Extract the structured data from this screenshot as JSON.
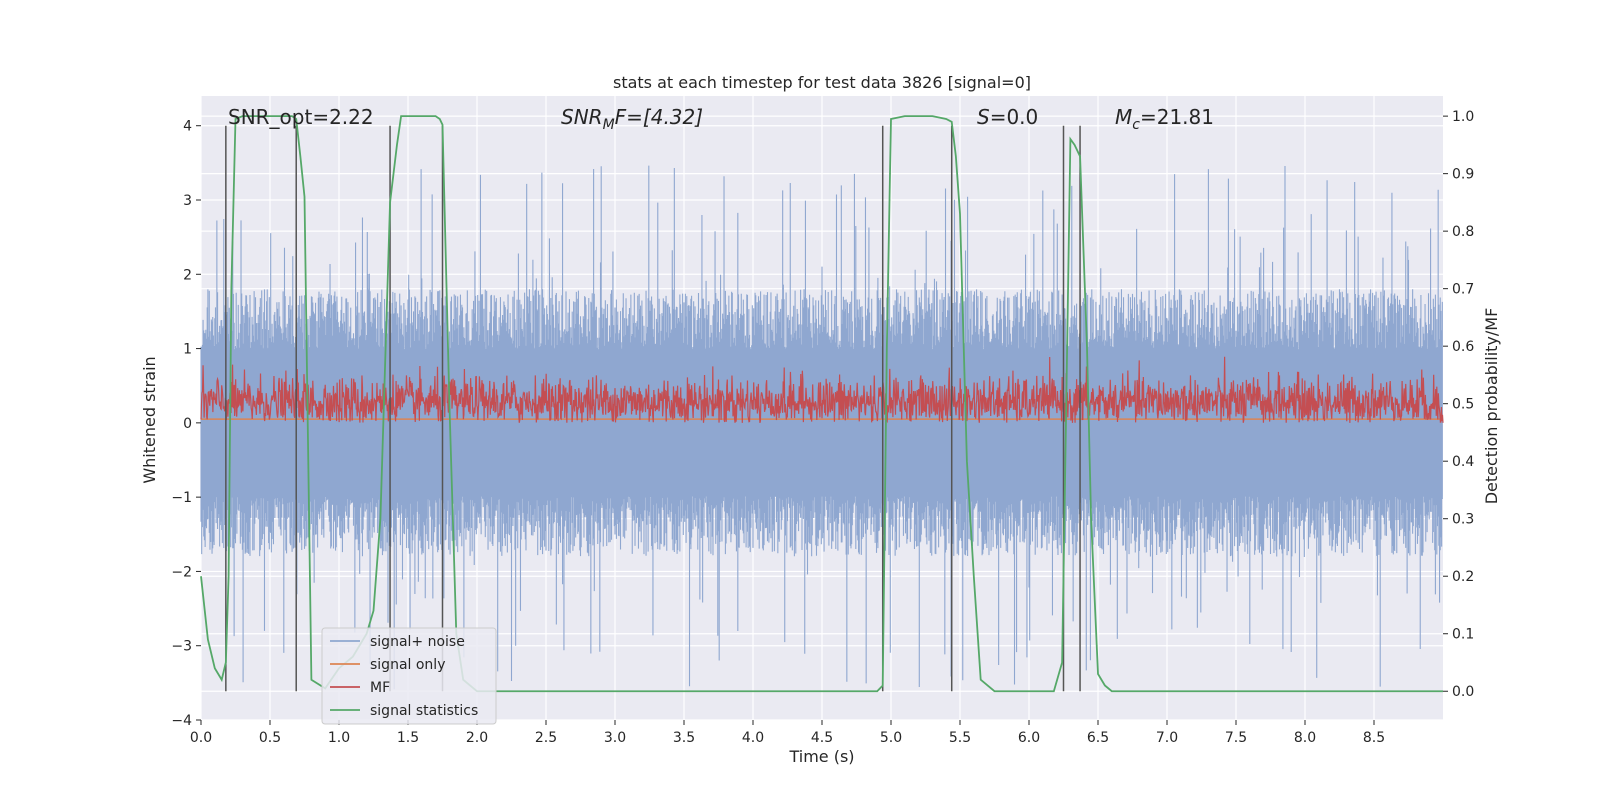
{
  "chart_data": {
    "type": "line",
    "title": "stats at each timestep for test data 3826 [signal=0]",
    "xlabel": "Time (s)",
    "ylabel_left": "Whitened strain",
    "ylabel_right": "Detection probability/MF",
    "xlim": [
      0.0,
      9.0
    ],
    "ylim_left": [
      -4.0,
      4.4
    ],
    "ylim_right": [
      -0.05,
      1.035
    ],
    "x_ticks": [
      "0.0",
      "0.5",
      "1.0",
      "1.5",
      "2.0",
      "2.5",
      "3.0",
      "3.5",
      "4.0",
      "4.5",
      "5.0",
      "5.5",
      "6.0",
      "6.5",
      "7.0",
      "7.5",
      "8.0",
      "8.5"
    ],
    "y_ticks_left": [
      "−4",
      "−3",
      "−2",
      "−1",
      "0",
      "1",
      "2",
      "3",
      "4"
    ],
    "y_ticks_right": [
      "0.0",
      "0.1",
      "0.2",
      "0.3",
      "0.4",
      "0.5",
      "0.6",
      "0.7",
      "0.8",
      "0.9",
      "1.0"
    ],
    "grid": true,
    "annotations": {
      "snr_opt": "SNR_opt=2.22",
      "snr_mf_base": "SNR",
      "snr_mf_sub": "M",
      "snr_mf_tail": "F=[4.32]",
      "s_label": "S",
      "s_value": "=0.0",
      "mc_label": "M",
      "mc_sub": "c",
      "mc_value": "=21.81"
    },
    "vertical_markers_x": [
      0.18,
      0.69,
      1.37,
      1.75,
      4.94,
      5.44,
      6.25,
      6.37
    ],
    "series": [
      {
        "name": "signal+ noise",
        "color": "#8fa7d0",
        "kind": "noise",
        "envelope_typical": [
          -1.8,
          1.8
        ],
        "peak_range": [
          -3.6,
          3.5
        ]
      },
      {
        "name": "signal only",
        "color": "#dd8452",
        "kind": "flat",
        "value": 0.05
      },
      {
        "name": "MF",
        "color": "#c44e52",
        "kind": "mf",
        "range": [
          0.0,
          0.95
        ]
      },
      {
        "name": "signal statistics",
        "color": "#55a868",
        "axis": "right",
        "x": [
          0.0,
          0.05,
          0.1,
          0.15,
          0.18,
          0.2,
          0.22,
          0.25,
          0.3,
          0.4,
          0.5,
          0.6,
          0.66,
          0.69,
          0.72,
          0.75,
          0.8,
          0.9,
          1.0,
          1.1,
          1.2,
          1.25,
          1.3,
          1.37,
          1.42,
          1.45,
          1.5,
          1.6,
          1.7,
          1.73,
          1.75,
          1.8,
          1.85,
          1.9,
          2.0,
          2.5,
          3.0,
          3.5,
          4.0,
          4.5,
          4.9,
          4.94,
          4.97,
          5.0,
          5.1,
          5.3,
          5.4,
          5.44,
          5.47,
          5.5,
          5.55,
          5.6,
          5.65,
          5.75,
          6.0,
          6.18,
          6.24,
          6.27,
          6.3,
          6.33,
          6.37,
          6.42,
          6.45,
          6.5,
          6.55,
          6.6,
          6.7,
          7.0,
          8.0,
          9.0
        ],
        "y": [
          0.2,
          0.09,
          0.04,
          0.02,
          0.05,
          0.2,
          0.7,
          0.995,
          1.0,
          1.0,
          1.0,
          1.0,
          1.0,
          0.995,
          0.93,
          0.86,
          0.02,
          0.005,
          0.04,
          0.06,
          0.1,
          0.14,
          0.3,
          0.85,
          0.95,
          1.0,
          1.0,
          1.0,
          1.0,
          0.995,
          0.985,
          0.5,
          0.1,
          0.02,
          0.0,
          0.0,
          0.0,
          0.0,
          0.0,
          0.0,
          0.0,
          0.01,
          0.6,
          0.995,
          1.0,
          1.0,
          0.995,
          0.99,
          0.93,
          0.83,
          0.4,
          0.2,
          0.02,
          0.0,
          0.0,
          0.0,
          0.05,
          0.5,
          0.96,
          0.95,
          0.93,
          0.6,
          0.3,
          0.03,
          0.01,
          0.0,
          0.0,
          0.0,
          0.0,
          0.0
        ]
      }
    ]
  }
}
